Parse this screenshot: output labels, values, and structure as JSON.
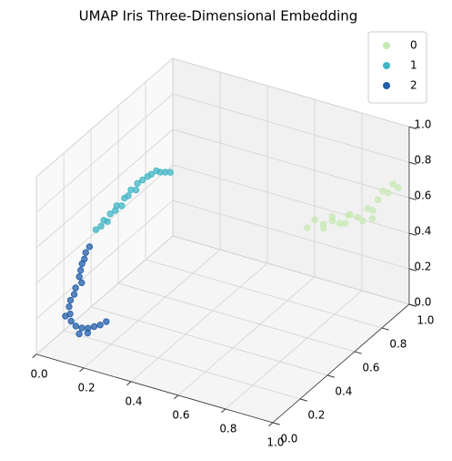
{
  "chart_data": {
    "type": "scatter3d",
    "title": "UMAP Iris Three-Dimensional Embedding",
    "xlim": [
      0,
      1
    ],
    "ylim": [
      0,
      1
    ],
    "zlim": [
      0,
      1
    ],
    "xticks": [
      {
        "value": 0,
        "label": "0.0"
      },
      0.2,
      0.4,
      0.6,
      0.8,
      {
        "value": 1,
        "label": "1.0"
      }
    ],
    "yticks": [
      {
        "value": 0,
        "label": "0.0"
      },
      0.2,
      0.4,
      0.6,
      0.8,
      {
        "value": 1,
        "label": "1.0"
      }
    ],
    "zticks": [
      {
        "value": 0,
        "label": "0.0"
      },
      0.2,
      0.4,
      0.6,
      0.8,
      {
        "value": 1,
        "label": "1.0"
      }
    ],
    "grid": true,
    "legend": "upper right",
    "series": [
      {
        "name": "0",
        "color": "#c7e9b4",
        "x": [
          0.8,
          0.82,
          0.84,
          0.85,
          0.86,
          0.88,
          0.87,
          0.89,
          0.9,
          0.91,
          0.92,
          0.93,
          0.94,
          0.95,
          0.96,
          0.97,
          0.98,
          0.99,
          1.0,
          0.96
        ],
        "y": [
          0.6,
          0.62,
          0.65,
          0.63,
          0.68,
          0.7,
          0.66,
          0.72,
          0.74,
          0.71,
          0.76,
          0.78,
          0.8,
          0.82,
          0.84,
          0.86,
          0.88,
          0.9,
          0.92,
          0.8
        ],
        "z": [
          0.62,
          0.66,
          0.6,
          0.64,
          0.63,
          0.61,
          0.67,
          0.6,
          0.64,
          0.66,
          0.62,
          0.59,
          0.65,
          0.63,
          0.68,
          0.72,
          0.7,
          0.74,
          0.71,
          0.6
        ]
      },
      {
        "name": "1",
        "color": "#41b6c4",
        "x": [
          0.09,
          0.1,
          0.1,
          0.11,
          0.11,
          0.12,
          0.12,
          0.13,
          0.13,
          0.14,
          0.14,
          0.15,
          0.15,
          0.16,
          0.17,
          0.18,
          0.19,
          0.2,
          0.21,
          0.22
        ],
        "y": [
          0.28,
          0.3,
          0.32,
          0.33,
          0.35,
          0.37,
          0.38,
          0.4,
          0.42,
          0.43,
          0.45,
          0.47,
          0.48,
          0.5,
          0.52,
          0.53,
          0.55,
          0.56,
          0.58,
          0.6
        ],
        "z": [
          0.55,
          0.56,
          0.58,
          0.57,
          0.6,
          0.61,
          0.63,
          0.62,
          0.65,
          0.66,
          0.68,
          0.67,
          0.7,
          0.71,
          0.72,
          0.73,
          0.74,
          0.73,
          0.72,
          0.71
        ]
      },
      {
        "name": "2",
        "color": "#225ea8",
        "x": [
          0.08,
          0.07,
          0.07,
          0.06,
          0.06,
          0.06,
          0.07,
          0.05,
          0.05,
          0.04,
          0.04,
          0.05,
          0.06,
          0.08,
          0.1,
          0.12,
          0.14,
          0.16,
          0.18,
          0.1,
          0.13,
          0.03
        ],
        "y": [
          0.25,
          0.24,
          0.23,
          0.23,
          0.22,
          0.21,
          0.21,
          0.2,
          0.19,
          0.18,
          0.17,
          0.16,
          0.15,
          0.15,
          0.16,
          0.17,
          0.18,
          0.19,
          0.2,
          0.14,
          0.15,
          0.16
        ],
        "z": [
          0.47,
          0.44,
          0.41,
          0.38,
          0.35,
          0.32,
          0.29,
          0.26,
          0.23,
          0.2,
          0.17,
          0.14,
          0.11,
          0.09,
          0.08,
          0.08,
          0.09,
          0.1,
          0.12,
          0.06,
          0.07,
          0.12
        ]
      }
    ]
  }
}
